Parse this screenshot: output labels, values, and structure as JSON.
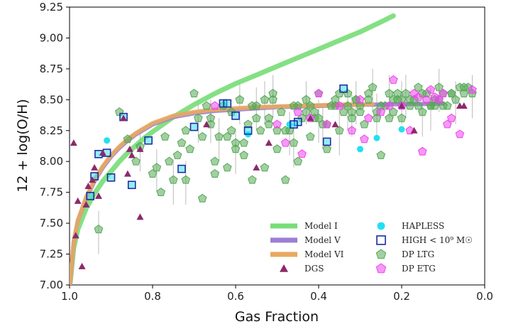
{
  "chart_data": {
    "type": "scatter",
    "xlabel": "Gas Fraction",
    "ylabel": "12 + log(O/H)",
    "xlim": [
      1.0,
      0.0
    ],
    "ylim": [
      7.0,
      9.25
    ],
    "x_reversed": true,
    "x_ticks": [
      "1.0",
      "0.8",
      "0.6",
      "0.4",
      "0.2",
      "0.0"
    ],
    "y_ticks": [
      "7.00",
      "7.25",
      "7.50",
      "7.75",
      "8.00",
      "8.25",
      "8.50",
      "8.75",
      "9.00",
      "9.25"
    ],
    "legend_position": "bottom-right",
    "models": [
      {
        "name": "Model I",
        "color": "#77dd77",
        "x": [
          0.999,
          0.99,
          0.98,
          0.96,
          0.94,
          0.92,
          0.9,
          0.88,
          0.86,
          0.84,
          0.82,
          0.8,
          0.75,
          0.7,
          0.65,
          0.6,
          0.55,
          0.5,
          0.45,
          0.4,
          0.35,
          0.3,
          0.25,
          0.22
        ],
        "y": [
          7.0,
          7.3,
          7.45,
          7.62,
          7.74,
          7.84,
          7.92,
          8.0,
          8.07,
          8.13,
          8.19,
          8.24,
          8.36,
          8.46,
          8.55,
          8.63,
          8.7,
          8.77,
          8.84,
          8.91,
          8.98,
          9.05,
          9.13,
          9.18
        ]
      },
      {
        "name": "Model V",
        "color": "#9b7fd4",
        "x": [
          0.999,
          0.99,
          0.98,
          0.96,
          0.94,
          0.92,
          0.9,
          0.88,
          0.86,
          0.84,
          0.82,
          0.8,
          0.75,
          0.7,
          0.65,
          0.6,
          0.55,
          0.5,
          0.45,
          0.4,
          0.35,
          0.3,
          0.25,
          0.2,
          0.15,
          0.1
        ],
        "y": [
          7.0,
          7.35,
          7.52,
          7.7,
          7.84,
          7.95,
          8.04,
          8.11,
          8.17,
          8.22,
          8.26,
          8.3,
          8.36,
          8.39,
          8.41,
          8.42,
          8.43,
          8.44,
          8.445,
          8.45,
          8.455,
          8.46,
          8.46,
          8.465,
          8.465,
          8.47
        ]
      },
      {
        "name": "Model VI",
        "color": "#e8a860",
        "x": [
          0.999,
          0.99,
          0.98,
          0.96,
          0.94,
          0.92,
          0.9,
          0.88,
          0.86,
          0.84,
          0.82,
          0.8,
          0.75,
          0.7,
          0.65,
          0.6,
          0.55,
          0.5,
          0.45,
          0.4,
          0.35,
          0.3,
          0.27
        ],
        "y": [
          7.0,
          7.35,
          7.52,
          7.71,
          7.85,
          7.96,
          8.05,
          8.12,
          8.18,
          8.23,
          8.27,
          8.31,
          8.37,
          8.4,
          8.42,
          8.43,
          8.44,
          8.445,
          8.45,
          8.455,
          8.46,
          8.46,
          8.465
        ]
      }
    ],
    "series": [
      {
        "name": "DGS",
        "marker": "triangle",
        "color": "#8b2a6b",
        "x": [
          0.99,
          0.985,
          0.96,
          0.955,
          0.94,
          0.93,
          0.92,
          0.87,
          0.86,
          0.855,
          0.85,
          0.83,
          0.83,
          0.67,
          0.55,
          0.52,
          0.42,
          0.36,
          0.2,
          0.17,
          0.06,
          0.05,
          0.98,
          0.97,
          0.945
        ],
        "y": [
          8.15,
          7.4,
          7.65,
          7.8,
          7.95,
          7.72,
          8.07,
          8.35,
          7.9,
          8.1,
          8.05,
          7.55,
          8.1,
          8.3,
          7.95,
          8.15,
          8.35,
          8.3,
          8.45,
          8.25,
          8.45,
          8.45,
          7.68,
          7.15,
          7.85
        ]
      },
      {
        "name": "HAPLESS",
        "marker": "circle",
        "color": "#22e0f0",
        "x": [
          0.91,
          0.26,
          0.2,
          0.57,
          0.3,
          0.47
        ],
        "y": [
          8.17,
          8.19,
          8.26,
          8.22,
          8.1,
          8.3
        ]
      },
      {
        "name": "HIGH < 10^9 M_sun",
        "marker": "square",
        "color": "#1a2aa0",
        "x": [
          0.93,
          0.91,
          0.94,
          0.9,
          0.85,
          0.81,
          0.87,
          0.73,
          0.7,
          0.63,
          0.62,
          0.57,
          0.6,
          0.45,
          0.46,
          0.38,
          0.34,
          0.95
        ],
        "y": [
          8.06,
          8.07,
          7.88,
          7.87,
          7.81,
          8.17,
          8.36,
          7.94,
          8.28,
          8.47,
          8.47,
          8.25,
          8.37,
          8.32,
          8.3,
          8.16,
          8.59,
          7.72
        ]
      },
      {
        "name": "DP LTG",
        "marker": "pentagon",
        "color": "#55a855",
        "x": [
          0.93,
          0.88,
          0.86,
          0.84,
          0.83,
          0.8,
          0.78,
          0.76,
          0.75,
          0.72,
          0.71,
          0.7,
          0.69,
          0.68,
          0.66,
          0.65,
          0.64,
          0.62,
          0.61,
          0.6,
          0.59,
          0.58,
          0.57,
          0.56,
          0.55,
          0.54,
          0.53,
          0.52,
          0.51,
          0.5,
          0.49,
          0.48,
          0.47,
          0.46,
          0.45,
          0.44,
          0.43,
          0.42,
          0.41,
          0.4,
          0.39,
          0.38,
          0.37,
          0.36,
          0.35,
          0.34,
          0.33,
          0.32,
          0.31,
          0.3,
          0.29,
          0.28,
          0.27,
          0.26,
          0.25,
          0.24,
          0.23,
          0.22,
          0.21,
          0.2,
          0.19,
          0.18,
          0.17,
          0.16,
          0.15,
          0.14,
          0.13,
          0.12,
          0.11,
          0.1,
          0.09,
          0.08,
          0.07,
          0.06,
          0.05,
          0.04,
          0.03,
          0.68,
          0.63,
          0.58,
          0.53,
          0.48,
          0.43,
          0.38,
          0.33,
          0.28,
          0.23,
          0.18,
          0.13,
          0.08,
          0.77,
          0.74,
          0.66,
          0.61,
          0.56,
          0.51,
          0.46,
          0.41,
          0.36,
          0.31,
          0.26,
          0.21,
          0.16,
          0.11,
          0.79,
          0.73,
          0.67,
          0.65,
          0.6,
          0.55,
          0.5,
          0.45,
          0.4,
          0.35,
          0.3,
          0.25,
          0.2,
          0.15,
          0.1,
          0.05,
          0.72,
          0.62,
          0.52,
          0.42,
          0.32,
          0.22,
          0.12
        ],
        "y": [
          7.45,
          8.4,
          8.18,
          8.0,
          8.12,
          7.9,
          7.75,
          8.0,
          7.85,
          8.25,
          8.1,
          8.55,
          8.35,
          7.7,
          8.3,
          8.0,
          8.2,
          7.95,
          8.4,
          8.15,
          8.5,
          8.05,
          8.3,
          7.85,
          8.45,
          8.25,
          7.95,
          8.35,
          8.55,
          8.1,
          8.4,
          7.85,
          8.25,
          8.45,
          8.0,
          8.35,
          8.5,
          8.2,
          8.4,
          8.55,
          8.3,
          8.1,
          8.45,
          8.5,
          8.25,
          8.4,
          8.55,
          8.35,
          8.5,
          8.45,
          8.3,
          8.5,
          8.6,
          8.35,
          8.05,
          8.45,
          8.55,
          8.4,
          8.5,
          8.35,
          8.55,
          8.45,
          8.5,
          8.6,
          8.4,
          8.55,
          8.45,
          8.5,
          8.6,
          8.55,
          8.45,
          8.55,
          8.5,
          8.6,
          8.55,
          8.6,
          8.55,
          8.2,
          8.45,
          8.15,
          8.5,
          8.25,
          8.4,
          8.3,
          8.45,
          8.55,
          8.35,
          8.5,
          8.45,
          8.55,
          8.2,
          8.05,
          8.35,
          8.25,
          8.45,
          8.5,
          8.15,
          8.35,
          8.45,
          8.5,
          8.4,
          8.55,
          8.45,
          8.5,
          7.95,
          8.15,
          8.45,
          7.9,
          8.1,
          8.35,
          8.25,
          8.45,
          8.35,
          8.55,
          8.4,
          8.45,
          8.5,
          8.55,
          8.45,
          8.6,
          7.85,
          8.2,
          8.3,
          8.45,
          8.4,
          8.5,
          8.45
        ]
      },
      {
        "name": "DP ETG",
        "marker": "pentagon",
        "color": "#ee44ee",
        "x": [
          0.65,
          0.5,
          0.48,
          0.45,
          0.42,
          0.4,
          0.38,
          0.35,
          0.32,
          0.3,
          0.28,
          0.25,
          0.22,
          0.2,
          0.18,
          0.17,
          0.15,
          0.14,
          0.12,
          0.11,
          0.1,
          0.08,
          0.06,
          0.03,
          0.44,
          0.29,
          0.23,
          0.16,
          0.09,
          0.13
        ],
        "y": [
          8.45,
          8.3,
          8.15,
          8.4,
          8.35,
          8.55,
          8.3,
          8.45,
          8.25,
          8.5,
          8.35,
          8.4,
          8.66,
          8.45,
          8.25,
          8.55,
          8.08,
          8.5,
          8.52,
          8.5,
          8.55,
          8.35,
          8.22,
          8.58,
          8.06,
          8.18,
          8.45,
          8.52,
          8.3,
          8.58
        ]
      }
    ],
    "legend": [
      {
        "label": "Model I",
        "kind": "line",
        "color": "#77dd77"
      },
      {
        "label": "Model V",
        "kind": "line",
        "color": "#9b7fd4"
      },
      {
        "label": "Model VI",
        "kind": "line",
        "color": "#e8a860"
      },
      {
        "label": "DGS",
        "kind": "triangle",
        "color": "#8b2a6b"
      },
      {
        "label": "HAPLESS",
        "kind": "circle",
        "color": "#22e0f0"
      },
      {
        "label": "HIGH < 10⁹ M☉",
        "kind": "square",
        "color": "#1a2aa0"
      },
      {
        "label": "DP LTG",
        "kind": "pentagon",
        "color": "#55a855"
      },
      {
        "label": "DP ETG",
        "kind": "pentagon",
        "color": "#ee44ee"
      }
    ]
  }
}
